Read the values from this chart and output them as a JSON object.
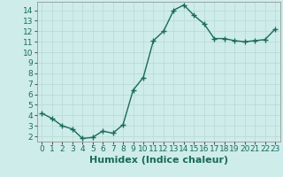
{
  "xlabel": "Humidex (Indice chaleur)",
  "x": [
    0,
    1,
    2,
    3,
    4,
    5,
    6,
    7,
    8,
    9,
    10,
    11,
    12,
    13,
    14,
    15,
    16,
    17,
    18,
    19,
    20,
    21,
    22,
    23
  ],
  "y": [
    4.2,
    3.7,
    3.0,
    2.7,
    1.8,
    1.9,
    2.5,
    2.3,
    3.1,
    6.4,
    7.6,
    11.1,
    12.0,
    14.0,
    14.5,
    13.5,
    12.7,
    11.3,
    11.3,
    11.1,
    11.0,
    11.1,
    11.2,
    12.2
  ],
  "line_color": "#1a6b5a",
  "marker": "+",
  "bg_color": "#ceecea",
  "grid_color": "#b8d8d5",
  "ylim": [
    1.5,
    14.8
  ],
  "xlim": [
    -0.5,
    23.5
  ],
  "yticks": [
    2,
    3,
    4,
    5,
    6,
    7,
    8,
    9,
    10,
    11,
    12,
    13,
    14
  ],
  "xticks": [
    0,
    1,
    2,
    3,
    4,
    5,
    6,
    7,
    8,
    9,
    10,
    11,
    12,
    13,
    14,
    15,
    16,
    17,
    18,
    19,
    20,
    21,
    22,
    23
  ],
  "xlabel_fontsize": 8,
  "tick_fontsize": 6.5,
  "line_width": 1.0,
  "marker_size": 4
}
